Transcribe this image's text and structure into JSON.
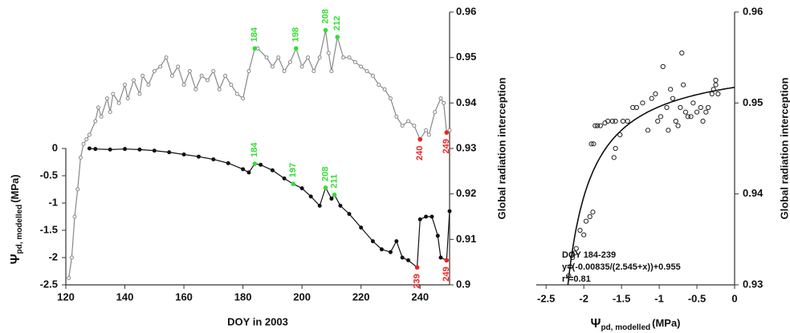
{
  "chart_data": [
    {
      "type": "line",
      "x_label": "DOY in 2003",
      "y_label": {
        "symbol": "Ψ",
        "subscript": "pd, modelled",
        "unit": "(MPa)"
      },
      "y2_label": "Global radiation interception",
      "xlim": [
        120,
        250
      ],
      "xticks": [
        120,
        140,
        160,
        180,
        200,
        220,
        240
      ],
      "ylim": [
        -2.5,
        2.5
      ],
      "yticks": [
        -2.5,
        -2,
        -1.5,
        -1,
        -0.5,
        0
      ],
      "y2lim": [
        0.9,
        0.96
      ],
      "y2ticks": [
        0.9,
        0.91,
        0.92,
        0.93,
        0.94,
        0.95,
        0.96
      ],
      "series": [
        {
          "axis": "y2",
          "color": "#888888",
          "marker": "open",
          "x": [
            121,
            122,
            123,
            124,
            125,
            126,
            127,
            128,
            130,
            131,
            132,
            134,
            135,
            136,
            138,
            140,
            141,
            143,
            145,
            146,
            148,
            150,
            152,
            154,
            156,
            158,
            160,
            162,
            164,
            166,
            168,
            170,
            172,
            174,
            176,
            178,
            180,
            182,
            184,
            185,
            188,
            190,
            192,
            194,
            196,
            198,
            200,
            202,
            204,
            206,
            208,
            209,
            210,
            212,
            214,
            216,
            218,
            220,
            222,
            224,
            226,
            228,
            230,
            232,
            234,
            236,
            238,
            240,
            242,
            243,
            245,
            247,
            248,
            249,
            250
          ],
          "values": [
            0.9015,
            0.906,
            0.915,
            0.921,
            0.928,
            0.931,
            0.932,
            0.933,
            0.936,
            0.939,
            0.937,
            0.941,
            0.938,
            0.942,
            0.94,
            0.944,
            0.941,
            0.945,
            0.942,
            0.946,
            0.944,
            0.947,
            0.948,
            0.95,
            0.946,
            0.948,
            0.944,
            0.947,
            0.943,
            0.946,
            0.945,
            0.947,
            0.943,
            0.946,
            0.944,
            0.942,
            0.941,
            0.947,
            0.952,
            0.952,
            0.95,
            0.948,
            0.95,
            0.947,
            0.949,
            0.952,
            0.948,
            0.95,
            0.947,
            0.95,
            0.956,
            0.951,
            0.947,
            0.9545,
            0.95,
            0.95,
            0.949,
            0.948,
            0.947,
            0.946,
            0.944,
            0.943,
            0.941,
            0.937,
            0.935,
            0.936,
            0.935,
            0.932,
            0.934,
            0.933,
            0.938,
            0.941,
            0.94,
            0.9335,
            0.934
          ],
          "highlights": [
            {
              "x": 184,
              "label": "184",
              "color": "#33dd33"
            },
            {
              "x": 198,
              "label": "198",
              "color": "#33dd33"
            },
            {
              "x": 208,
              "label": "208",
              "color": "#33dd33"
            },
            {
              "x": 212,
              "label": "212",
              "color": "#33dd33"
            },
            {
              "x": 240,
              "label": "240",
              "color": "#ee2222"
            },
            {
              "x": 249,
              "label": "249",
              "color": "#ee2222"
            }
          ]
        },
        {
          "axis": "y",
          "color": "#111111",
          "marker": "filled",
          "x": [
            128,
            130,
            135,
            140,
            145,
            150,
            155,
            160,
            165,
            170,
            175,
            180,
            182,
            184,
            186,
            190,
            194,
            197,
            200,
            203,
            206,
            208,
            210,
            211,
            213,
            216,
            220,
            224,
            227,
            230,
            232,
            234,
            236,
            239,
            240,
            242,
            244,
            246,
            247,
            249,
            250
          ],
          "values": [
            0,
            -0.01,
            -0.02,
            -0.01,
            -0.02,
            -0.04,
            -0.07,
            -0.11,
            -0.15,
            -0.2,
            -0.27,
            -0.38,
            -0.44,
            -0.28,
            -0.3,
            -0.4,
            -0.55,
            -0.65,
            -0.73,
            -0.88,
            -1.05,
            -0.72,
            -0.92,
            -0.85,
            -1.05,
            -1.2,
            -1.45,
            -1.7,
            -1.85,
            -1.9,
            -1.7,
            -2,
            -2.05,
            -2.18,
            -1.3,
            -1.25,
            -1.25,
            -1.6,
            -2,
            -2.05,
            -1.15
          ],
          "highlights": [
            {
              "x": 184,
              "label": "184",
              "color": "#33dd33"
            },
            {
              "x": 197,
              "label": "197",
              "color": "#33dd33"
            },
            {
              "x": 208,
              "label": "208",
              "color": "#33dd33"
            },
            {
              "x": 211,
              "label": "211",
              "color": "#33dd33"
            },
            {
              "x": 239,
              "label": "239",
              "color": "#ee2222"
            },
            {
              "x": 249,
              "label": "249",
              "color": "#ee2222"
            }
          ]
        }
      ]
    },
    {
      "type": "scatter",
      "x_label": {
        "symbol": "Ψ",
        "subscript": "pd, modelled",
        "unit": "(MPa)"
      },
      "y_label": "Global radiation interception",
      "y_axis_side": "right",
      "xlim": [
        -2.63,
        0
      ],
      "xticks": [
        -2.5,
        -2,
        -1.5,
        -1,
        -0.5,
        0
      ],
      "ylim": [
        0.93,
        0.96
      ],
      "yticks": [
        0.93,
        0.94,
        0.95,
        0.96
      ],
      "color": "#222222",
      "x": [
        -2.2,
        -2.18,
        -2.15,
        -2.12,
        -2.1,
        -2.05,
        -2,
        -1.97,
        -1.92,
        -1.88,
        -1.9,
        -1.87,
        -1.85,
        -1.82,
        -1.78,
        -1.72,
        -1.68,
        -1.62,
        -1.58,
        -1.6,
        -1.58,
        -1.52,
        -1.48,
        -1.42,
        -1.35,
        -1.3,
        -1.22,
        -1.15,
        -1.1,
        -1.05,
        -1.02,
        -0.98,
        -0.95,
        -0.9,
        -0.88,
        -0.85,
        -0.82,
        -0.78,
        -0.75,
        -0.72,
        -0.7,
        -0.68,
        -0.65,
        -0.62,
        -0.58,
        -0.55,
        -0.5,
        -0.45,
        -0.42,
        -0.38,
        -0.35,
        -0.3,
        -0.28,
        -0.25,
        -0.22,
        -0.25
      ],
      "values": [
        0.931,
        0.932,
        0.933,
        0.9335,
        0.934,
        0.936,
        0.9355,
        0.937,
        0.9375,
        0.938,
        0.9455,
        0.9455,
        0.9475,
        0.9475,
        0.9475,
        0.9478,
        0.948,
        0.948,
        0.948,
        0.944,
        0.945,
        0.9465,
        0.948,
        0.948,
        0.9495,
        0.9495,
        0.95,
        0.947,
        0.9505,
        0.951,
        0.948,
        0.9485,
        0.954,
        0.9495,
        0.947,
        0.9515,
        0.9505,
        0.948,
        0.9475,
        0.9495,
        0.9555,
        0.952,
        0.949,
        0.9485,
        0.9485,
        0.95,
        0.949,
        0.9495,
        0.948,
        0.949,
        0.9495,
        0.951,
        0.9515,
        0.952,
        0.951,
        0.9525
      ],
      "fit": {
        "a": -0.00835,
        "b": 2.545,
        "c": 0.955
      },
      "annotation": [
        "DOY 184-239",
        "y=(-0.00835/(2.545+x))+0.955",
        "r²=0.81"
      ]
    }
  ]
}
